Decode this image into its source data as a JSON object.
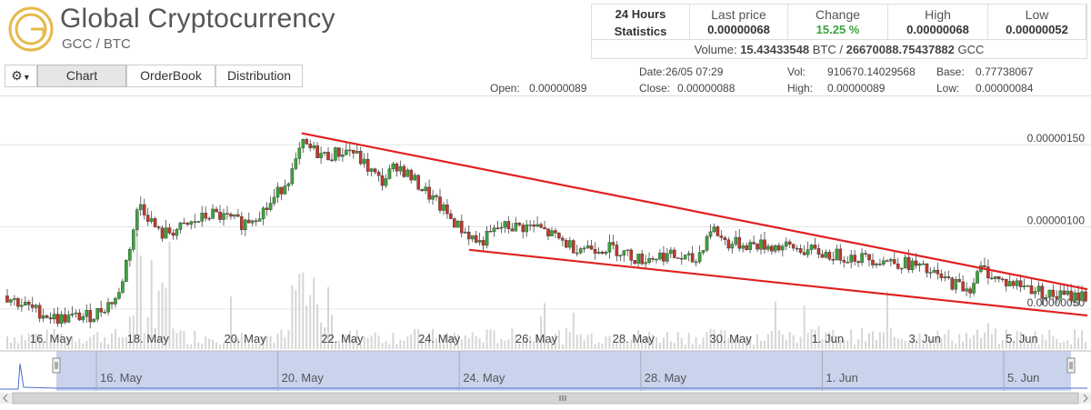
{
  "header": {
    "title": "Global Cryptocurrency",
    "pair": "GCC / BTC",
    "logo_color": "#e6b94a"
  },
  "stats": {
    "heading_line1": "24 Hours",
    "heading_line2": "Statistics",
    "last_price_label": "Last price",
    "last_price": "0.00000068",
    "change_label": "Change",
    "change": "15.25 %",
    "high_label": "High",
    "high": "0.00000068",
    "low_label": "Low",
    "low": "0.00000052",
    "volume_label": "Volume:",
    "volume_btc": "15.43433548",
    "volume_btc_unit": "BTC /",
    "volume_gcc": "26670088.75437882",
    "volume_gcc_unit": "GCC"
  },
  "toolbar": {
    "settings_icon": "gear-icon",
    "tabs": [
      "Chart",
      "OrderBook",
      "Distribution"
    ],
    "active_tab": "Chart"
  },
  "ohlc_info": {
    "date_label": "Date:",
    "date": "26/05 07:29",
    "vol_label": "Vol:",
    "vol": "910670.14029568",
    "base_label": "Base:",
    "base": "0.77738067",
    "open_label": "Open:",
    "open": "0.00000089",
    "close_label": "Close:",
    "close": "0.00000088",
    "high_label": "High:",
    "high": "0.00000089",
    "low_label": "Low:",
    "low": "0.00000084"
  },
  "chart_data": {
    "type": "candlestick",
    "title": "",
    "x_ticks": [
      "16. May",
      "18. May",
      "20. May",
      "22. May",
      "24. May",
      "26. May",
      "28. May",
      "30. May",
      "1. Jun",
      "3. Jun",
      "5. Jun"
    ],
    "y_ticks": [
      "0.00000150",
      "0.00000100",
      "0.00000050"
    ],
    "ylim": [
      2.5e-07,
      1.8e-06
    ],
    "grid": true,
    "price_path": [
      [
        15.0,
        5.8e-07
      ],
      [
        15.5,
        5e-07
      ],
      [
        16.0,
        4.4e-07
      ],
      [
        16.7,
        4.6e-07
      ],
      [
        17.2,
        5.8e-07
      ],
      [
        17.6,
        1.15e-06
      ],
      [
        18.0,
        9.5e-07
      ],
      [
        18.5,
        1e-06
      ],
      [
        19.0,
        1.08e-06
      ],
      [
        19.6,
        1.02e-06
      ],
      [
        20.1,
        1.12e-06
      ],
      [
        20.6,
        1.35e-06
      ],
      [
        20.75,
        1.5e-06
      ],
      [
        21.2,
        1.43e-06
      ],
      [
        21.7,
        1.47e-06
      ],
      [
        22.3,
        1.27e-06
      ],
      [
        22.6,
        1.38e-06
      ],
      [
        23.2,
        1.2e-06
      ],
      [
        23.8,
        1e-06
      ],
      [
        24.2,
        9e-07
      ],
      [
        24.6,
        1e-06
      ],
      [
        25.3,
        1e-06
      ],
      [
        26.0,
        8.8e-07
      ],
      [
        26.8,
        8.7e-07
      ],
      [
        27.3,
        8e-07
      ],
      [
        27.8,
        8.3e-07
      ],
      [
        28.4,
        7.9e-07
      ],
      [
        28.7,
        1e-06
      ],
      [
        29.0,
        9e-07
      ],
      [
        29.6,
        8.9e-07
      ],
      [
        30.3,
        8.7e-07
      ],
      [
        31.0,
        8.3e-07
      ],
      [
        32.0,
        8e-07
      ],
      [
        32.6,
        7.7e-07
      ],
      [
        33.2,
        6.8e-07
      ],
      [
        33.7,
        6.2e-07
      ],
      [
        33.95,
        7.5e-07
      ],
      [
        34.3,
        6.7e-07
      ],
      [
        34.8,
        6.4e-07
      ],
      [
        35.3,
        5.8e-07
      ],
      [
        36.0,
        5.8e-07
      ]
    ],
    "trendlines": [
      {
        "from": [
          20.75,
          1.57e-06
        ],
        "to": [
          36.0,
          6.2e-07
        ],
        "color": "#e02020"
      },
      {
        "from": [
          24.0,
          8.6e-07
        ],
        "to": [
          36.0,
          4.6e-07
        ],
        "color": "#e02020"
      }
    ],
    "up_color": "#3aa53a",
    "down_color": "#c0392b"
  },
  "navigator": {
    "labels": [
      "16. May",
      "20. May",
      "24. May",
      "28. May",
      "1. Jun",
      "5. Jun"
    ],
    "fill_color": "#c9d3ec"
  }
}
